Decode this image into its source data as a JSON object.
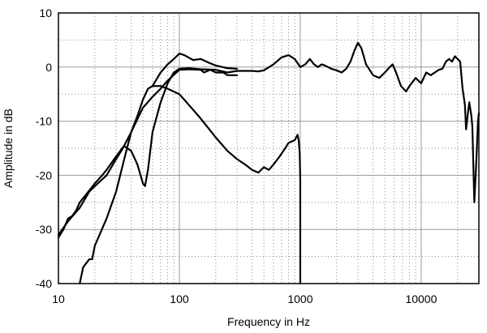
{
  "chart_data": {
    "type": "line",
    "xlabel": "Frequency in Hz",
    "ylabel": "Amplitude in dB",
    "x_scale": "log",
    "xlim": [
      10,
      30000
    ],
    "ylim": [
      -40,
      10
    ],
    "x_ticks": [
      10,
      100,
      1000,
      10000
    ],
    "x_tick_labels": [
      "10",
      "100",
      "1000",
      "10000"
    ],
    "y_ticks": [
      10,
      0,
      -10,
      -20,
      -30,
      -40
    ],
    "y_tick_labels": [
      "10",
      "0",
      "-10",
      "-20",
      "-30",
      "-40"
    ],
    "grid": true,
    "series": [
      {
        "points": [
          [
            10,
            -31.5
          ],
          [
            11,
            -30
          ],
          [
            12,
            -28
          ],
          [
            13,
            -27.5
          ],
          [
            14,
            -26.5
          ],
          [
            15,
            -25
          ],
          [
            17,
            -23.5
          ],
          [
            20,
            -21.5
          ],
          [
            23,
            -20
          ],
          [
            25,
            -19
          ],
          [
            30,
            -16.5
          ],
          [
            35,
            -14.5
          ],
          [
            40,
            -12
          ],
          [
            50,
            -7.5
          ],
          [
            60,
            -5.5
          ],
          [
            70,
            -4
          ],
          [
            80,
            -2.5
          ],
          [
            100,
            -0.5
          ],
          [
            120,
            -0.4
          ],
          [
            150,
            -0.5
          ],
          [
            160,
            -1
          ],
          [
            180,
            -0.5
          ],
          [
            200,
            -1
          ],
          [
            230,
            -1
          ],
          [
            250,
            -1.5
          ],
          [
            300,
            -1.5
          ]
        ]
      },
      {
        "points": [
          [
            10,
            -31
          ],
          [
            12,
            -28.5
          ],
          [
            15,
            -26
          ],
          [
            18,
            -23
          ],
          [
            20,
            -22
          ],
          [
            25,
            -20
          ],
          [
            30,
            -17
          ],
          [
            35,
            -14.6
          ],
          [
            40,
            -15.5
          ],
          [
            45,
            -18
          ],
          [
            50,
            -21.5
          ],
          [
            52,
            -22
          ],
          [
            55,
            -19
          ],
          [
            60,
            -12
          ],
          [
            70,
            -6.5
          ],
          [
            80,
            -3
          ],
          [
            90,
            -1
          ],
          [
            100,
            -0.3
          ],
          [
            120,
            -0.2
          ],
          [
            150,
            -0.4
          ],
          [
            200,
            -0.5
          ],
          [
            250,
            -1
          ],
          [
            300,
            -0.7
          ],
          [
            400,
            -0.7
          ],
          [
            450,
            -0.8
          ],
          [
            500,
            -0.6
          ],
          [
            600,
            0.5
          ],
          [
            700,
            1.8
          ],
          [
            800,
            2.2
          ],
          [
            900,
            1.5
          ],
          [
            1000,
            0
          ],
          [
            1100,
            0.5
          ],
          [
            1200,
            1.5
          ],
          [
            1300,
            0.5
          ],
          [
            1400,
            0
          ],
          [
            1500,
            0.5
          ],
          [
            1600,
            0.3
          ],
          [
            1800,
            -0.3
          ],
          [
            2000,
            -0.6
          ],
          [
            2200,
            -1
          ],
          [
            2400,
            -0.3
          ],
          [
            2600,
            1
          ],
          [
            2800,
            3
          ],
          [
            3000,
            4.5
          ],
          [
            3200,
            3.5
          ],
          [
            3500,
            0.5
          ],
          [
            4000,
            -1.5
          ],
          [
            4500,
            -2
          ],
          [
            5000,
            -1
          ],
          [
            5500,
            0
          ],
          [
            5800,
            0.5
          ],
          [
            6200,
            -1
          ],
          [
            6800,
            -3.5
          ],
          [
            7500,
            -4.5
          ],
          [
            8000,
            -3.5
          ],
          [
            9000,
            -2
          ],
          [
            10000,
            -3
          ],
          [
            11000,
            -1
          ],
          [
            12000,
            -1.5
          ],
          [
            14000,
            -0.5
          ],
          [
            15000,
            -0.3
          ],
          [
            16000,
            1
          ],
          [
            17000,
            1.5
          ],
          [
            18000,
            1
          ],
          [
            19000,
            2
          ],
          [
            20000,
            1.5
          ],
          [
            21000,
            1
          ],
          [
            22000,
            -4
          ],
          [
            23000,
            -7
          ],
          [
            23500,
            -11.5
          ],
          [
            24500,
            -8
          ],
          [
            25000,
            -6.5
          ],
          [
            26000,
            -9
          ],
          [
            26500,
            -11
          ],
          [
            27500,
            -25
          ],
          [
            28500,
            -18
          ],
          [
            29500,
            -10
          ],
          [
            30000,
            -8.5
          ]
        ]
      },
      {
        "points": [
          [
            15,
            -40
          ],
          [
            16,
            -37
          ],
          [
            18,
            -35.5
          ],
          [
            19,
            -35.5
          ],
          [
            20,
            -33
          ],
          [
            25,
            -28
          ],
          [
            30,
            -23
          ],
          [
            35,
            -17
          ],
          [
            40,
            -12
          ],
          [
            45,
            -9
          ],
          [
            50,
            -6
          ],
          [
            55,
            -4
          ],
          [
            60,
            -3.5
          ],
          [
            70,
            -3.5
          ],
          [
            80,
            -4
          ],
          [
            100,
            -5
          ],
          [
            120,
            -7
          ],
          [
            150,
            -9.5
          ],
          [
            200,
            -13
          ],
          [
            250,
            -15.5
          ],
          [
            300,
            -17
          ],
          [
            350,
            -18
          ],
          [
            400,
            -19
          ],
          [
            450,
            -19.5
          ],
          [
            500,
            -18.5
          ],
          [
            550,
            -19
          ],
          [
            600,
            -18
          ],
          [
            650,
            -17
          ],
          [
            700,
            -16
          ],
          [
            750,
            -15
          ],
          [
            800,
            -14
          ],
          [
            900,
            -13.5
          ],
          [
            950,
            -12.5
          ],
          [
            970,
            -13.5
          ],
          [
            990,
            -16
          ],
          [
            1000,
            -21
          ],
          [
            1000,
            -40
          ]
        ]
      },
      {
        "points": [
          [
            60,
            -3.5
          ],
          [
            70,
            -1
          ],
          [
            80,
            0.5
          ],
          [
            90,
            1.5
          ],
          [
            100,
            2.5
          ],
          [
            110,
            2.2
          ],
          [
            130,
            1.3
          ],
          [
            150,
            1.5
          ],
          [
            180,
            0.7
          ],
          [
            200,
            0.3
          ],
          [
            250,
            -0.2
          ],
          [
            300,
            -0.3
          ]
        ]
      }
    ]
  }
}
